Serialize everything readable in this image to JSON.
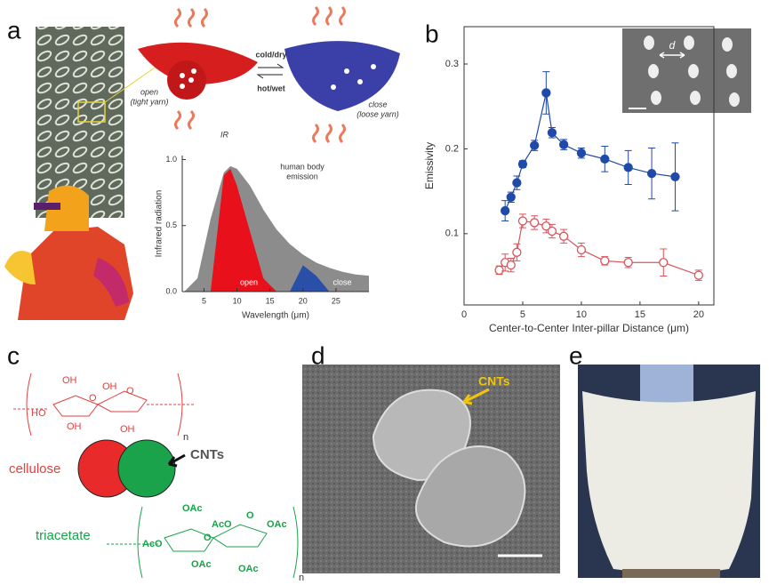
{
  "panel_labels": [
    "a",
    "b",
    "c",
    "d",
    "e"
  ],
  "panel_a": {
    "open_label": "open",
    "open_sub": "(tight yarn)",
    "switch_top": "cold/dry",
    "switch_bottom": "hot/wet",
    "close_label": "close",
    "close_sub": "(loose yarn)",
    "ir_label": "IR"
  },
  "panel_b": {
    "inset_label": "d"
  },
  "panel_c": {
    "top_labels": [
      "OH",
      "OH",
      "HO",
      "OH",
      "O",
      "O",
      "OH",
      "n"
    ],
    "bottom_labels": [
      "OAc",
      "AcO",
      "OAc",
      "AcO",
      "O",
      "O",
      "OAc",
      "OAc",
      "n"
    ],
    "cellulose": "cellulose",
    "cnts": "CNTs",
    "triacetate": "triacetate"
  },
  "panel_d": {
    "cnts": "CNTs"
  },
  "chart_data": [
    {
      "type": "area",
      "xlabel": "Wavelength (μm)",
      "ylabel": "Infrared radiation",
      "x": [
        2,
        4,
        6,
        8,
        9,
        10,
        12,
        14,
        16,
        18,
        20,
        22,
        24,
        26,
        28,
        30
      ],
      "series": [
        {
          "color": "#8c8c8c",
          "values": [
            0,
            0.1,
            0.55,
            0.9,
            0.95,
            0.93,
            0.8,
            0.62,
            0.47,
            0.36,
            0.28,
            0.22,
            0.18,
            0.15,
            0.13,
            0.12
          ]
        },
        {
          "color": "#e8101a",
          "values": [
            null,
            null,
            0,
            0.88,
            0.93,
            0.8,
            0.45,
            0.1,
            0,
            null,
            null,
            null,
            null,
            null,
            null,
            null
          ]
        },
        {
          "color": "#2a4fa8",
          "values": [
            null,
            null,
            null,
            null,
            null,
            null,
            null,
            null,
            null,
            0,
            0.2,
            0.12,
            0,
            null,
            null,
            null
          ]
        }
      ],
      "annotations": [
        "human body",
        "emission",
        "open",
        "close"
      ],
      "xlim": [
        1.7,
        30
      ],
      "ylim": [
        0,
        1.03
      ],
      "xticks": [
        5,
        10,
        15,
        20,
        25
      ],
      "yticks": [
        {
          "value": 0,
          "label": "0.0"
        },
        0.5,
        {
          "value": 1,
          "label": "1.0"
        }
      ]
    },
    {
      "type": "line",
      "xlabel": "Center-to-Center Inter-pillar Distance (μm)",
      "ylabel": "Emissivity",
      "series": [
        {
          "color": "#1f4aa8",
          "marker": "filled",
          "x": [
            3.5,
            4,
            4.5,
            5,
            6,
            7,
            7.5,
            8.5,
            10,
            12,
            14,
            16,
            18
          ],
          "values": [
            0.127,
            0.143,
            0.16,
            0.182,
            0.204,
            0.266,
            0.219,
            0.205,
            0.195,
            0.188,
            0.178,
            0.171,
            0.167
          ],
          "errors": [
            0.012,
            0.006,
            0.008,
            0.004,
            0.006,
            0.025,
            0.006,
            0.006,
            0.006,
            0.015,
            0.02,
            0.03,
            0.04
          ]
        },
        {
          "color": "#d9545b",
          "marker": "open",
          "x": [
            3,
            3.5,
            4,
            4.5,
            5,
            6,
            7,
            7.5,
            8.5,
            10,
            12,
            14,
            17,
            20
          ],
          "values": [
            0.057,
            0.066,
            0.063,
            0.078,
            0.115,
            0.113,
            0.109,
            0.103,
            0.097,
            0.081,
            0.068,
            0.066,
            0.066,
            0.051
          ],
          "errors": [
            0.005,
            0.01,
            0.008,
            0.01,
            0.008,
            0.008,
            0.008,
            0.008,
            0.008,
            0.008,
            0.005,
            0.006,
            0.016,
            0.006
          ]
        }
      ],
      "xlim": [
        0,
        21.3
      ],
      "ylim": [
        0.016,
        0.344
      ],
      "xticks": [
        0,
        5,
        10,
        15,
        20
      ],
      "yticks": [
        0.1,
        0.2,
        0.3
      ]
    }
  ]
}
